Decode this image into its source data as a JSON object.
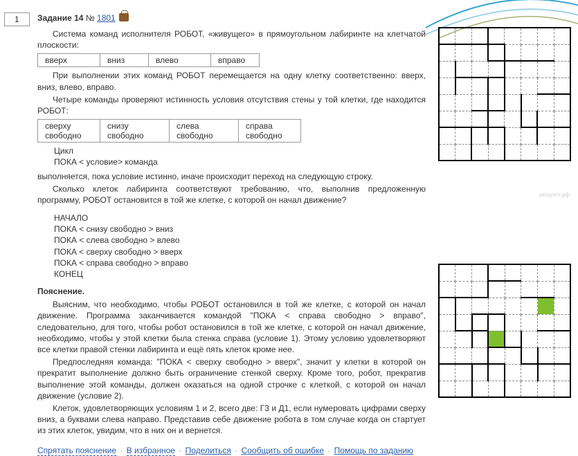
{
  "task_number_box": "1",
  "title": {
    "label": "Задание 14",
    "sep": "№",
    "link": "1801"
  },
  "intro": "Система команд исполнителя РОБОТ, «живущего» в прямоугольном лабиринте на клетчатой плоскости:",
  "table1": [
    "вверх",
    "вниз",
    "влево",
    "вправо"
  ],
  "para1": "При выполнении этих команд РОБОТ перемещается на одну клетку соответственно: вверх, вниз, влево, вправо.",
  "para2": "Четыре команды проверяют истинность условия отсутствия стены у той клетки, где находится РОБОТ:",
  "table2": [
    "сверху свободно",
    "снизу свободно",
    "слева свободно",
    "справа свободно"
  ],
  "code1": [
    "Цикл",
    "ПОКА < условие> команда"
  ],
  "para3": "выполняется, пока условие истинно, иначе происходит переход на следующую строку.",
  "para4": "Сколько клеток лабиринта соответствуют требованию, что, выполнив предложенную программу, РОБОТ остановится в той же клетке, с которой он начал движение?",
  "code2": [
    "НАЧАЛО",
    "ПОКА < снизу свободно > вниз",
    "ПОКА < слева свободно > влево",
    "ПОКА < сверху свободно > вверх",
    "ПОКА < справа свободно > вправо",
    "КОНЕЦ"
  ],
  "explain_head": "Пояснение.",
  "explain_paras": [
    "Выясним, что необходимо, чтобы РОБОТ остановился в той же клетке, с которой он начал движение. Программа заканчивается командой \"ПОКА < справа свободно > вправо\", следовательно, для того, чтобы робот остановился в той же клетке, с которой он начал движение, необходимо, чтобы у этой клетки была стенка справа (условие 1). Этому условию удовлетворяют все клетки правой стенки лабиринта и ещё пять клеток кроме нее.",
    "Предпоследняя команда: \"ПОКА < сверху свободно > вверх\", значит у клетки в которой он прекратит выполнение должно быть ограничение стенкой сверху. Кроме того, робот, прекратив выполнение этой команды, должен оказаться на одной строчке с клеткой, с которой он начал движение (условие 2).",
    "Клеток, удовлетворяющих условиям 1 и 2, всего две: Г3 и Д1, если нумеровать цифрами сверху вниз, а буквами слева направо. Представив себе движение робота в том случае когда он стартует из этих клеток, увидим, что в них он и вернется."
  ],
  "footer": {
    "hide": "Спрятать пояснение",
    "fav": "В избранное",
    "share": "Поделиться",
    "report": "Сообщить об ошибке",
    "help": "Помощь по заданию"
  },
  "maze1": {
    "size": 8,
    "walls_h": [
      [
        2,
        1,
        4
      ],
      [
        3,
        4,
        5
      ],
      [
        3,
        6,
        7
      ],
      [
        4,
        2,
        4
      ],
      [
        5,
        7,
        8
      ],
      [
        6,
        3,
        4
      ],
      [
        7,
        1,
        4
      ],
      [
        7,
        6,
        8
      ]
    ],
    "walls_v": [
      [
        4,
        1,
        2
      ],
      [
        5,
        2,
        3
      ],
      [
        2,
        3,
        4
      ],
      [
        5,
        4,
        5
      ],
      [
        4,
        4,
        7
      ],
      [
        6,
        5,
        6
      ],
      [
        7,
        6,
        7
      ],
      [
        3,
        7,
        8
      ],
      [
        5,
        7,
        8
      ]
    ],
    "fills": []
  },
  "maze2": {
    "size": 8,
    "walls_h": [
      [
        2,
        4,
        5
      ],
      [
        3,
        1,
        3
      ],
      [
        3,
        6,
        7
      ],
      [
        4,
        3,
        4
      ],
      [
        5,
        7,
        8
      ],
      [
        5,
        2,
        3
      ],
      [
        6,
        4,
        5
      ],
      [
        7,
        1,
        4
      ],
      [
        7,
        6,
        8
      ]
    ],
    "walls_v": [
      [
        4,
        1,
        2
      ],
      [
        2,
        3,
        4
      ],
      [
        4,
        4,
        7
      ],
      [
        5,
        4,
        5
      ],
      [
        6,
        5,
        6
      ],
      [
        7,
        6,
        7
      ],
      [
        3,
        7,
        8
      ],
      [
        5,
        7,
        8
      ],
      [
        3,
        4,
        5
      ]
    ],
    "fills": [
      [
        3,
        7
      ],
      [
        5,
        4
      ]
    ]
  },
  "colors": {
    "link": "#2a5da8",
    "fill": "#7fbf2f",
    "border": "#000000",
    "dash": "#888888"
  }
}
